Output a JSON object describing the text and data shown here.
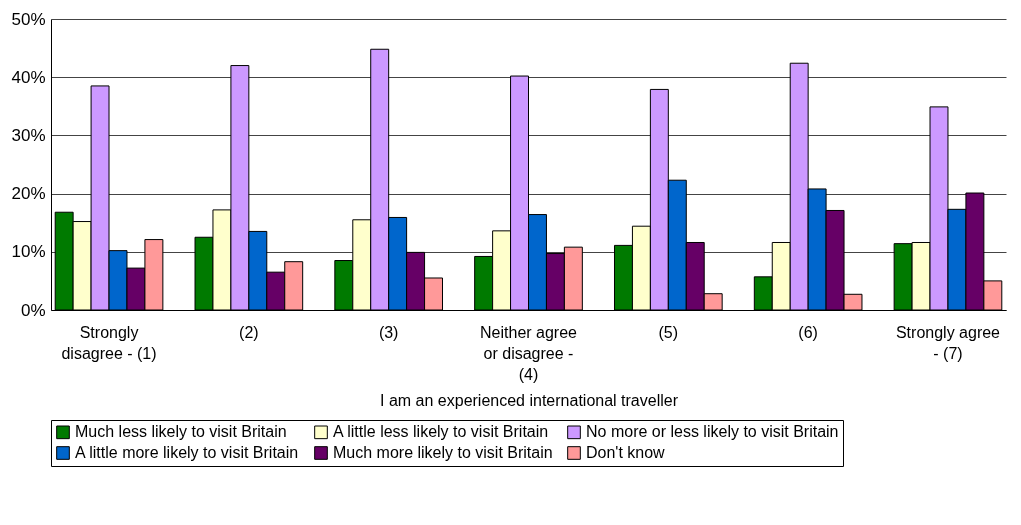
{
  "chart_data": {
    "type": "bar",
    "xlabel": "I am an experienced international traveller",
    "categories": [
      "Strongly disagree - (1)",
      "(2)",
      "(3)",
      "Neither agree or disagree - (4)",
      "(5)",
      "(6)",
      "Strongly agree - (7)"
    ],
    "series": [
      {
        "name": "Much less likely to visit Britain",
        "color": "#007a00",
        "values": [
          16.8,
          12.5,
          8.5,
          9.2,
          11.1,
          5.7,
          11.4
        ]
      },
      {
        "name": "A little less likely to visit Britain",
        "color": "#ffffcc",
        "values": [
          15.2,
          17.2,
          15.5,
          13.6,
          14.4,
          11.6,
          11.6
        ]
      },
      {
        "name": "No more or less likely to visit Britain",
        "color": "#cc99ff",
        "values": [
          38.5,
          42.0,
          44.8,
          40.2,
          37.9,
          42.4,
          34.9
        ]
      },
      {
        "name": "A little more likely to visit Britain",
        "color": "#0066cc",
        "values": [
          10.2,
          13.5,
          15.9,
          16.4,
          22.3,
          20.8,
          17.3
        ]
      },
      {
        "name": "Much more likely to visit Britain",
        "color": "#660066",
        "values": [
          7.2,
          6.5,
          9.9,
          9.7,
          11.6,
          17.1,
          20.1
        ]
      },
      {
        "name": "Don't know",
        "color": "#ff9999",
        "values": [
          12.1,
          8.3,
          5.5,
          10.8,
          2.8,
          2.7,
          5.0
        ]
      }
    ],
    "ylim": [
      0,
      50
    ],
    "yticks": [
      {
        "value": 0,
        "label": "0%"
      },
      {
        "value": 10,
        "label": "10%"
      },
      {
        "value": 20,
        "label": "20%"
      },
      {
        "value": 30,
        "label": "30%"
      },
      {
        "value": 40,
        "label": "40%"
      },
      {
        "value": 50,
        "label": "50%"
      }
    ],
    "grid": "y",
    "legend": "bottom"
  }
}
